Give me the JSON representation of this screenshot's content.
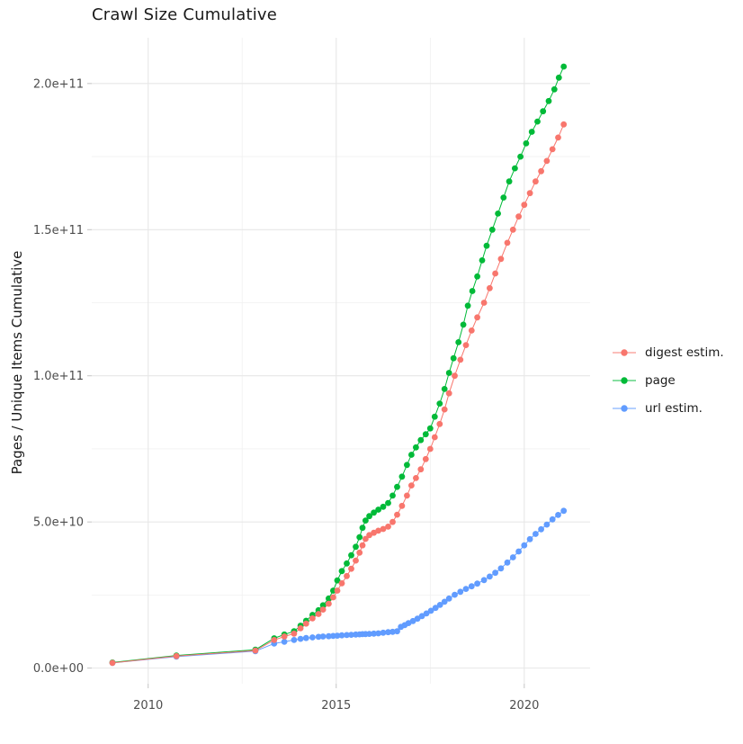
{
  "chart_data": {
    "type": "line",
    "title": "Crawl Size Cumulative",
    "xlabel": "",
    "ylabel": "Pages / Unique Items Cumulative",
    "legend_position": "right",
    "grid": true,
    "value_unit": "1e9",
    "x_axis": {
      "range": [
        2008.5,
        2021.75
      ],
      "ticks": [
        {
          "value": 2010,
          "label": "2010"
        },
        {
          "value": 2015,
          "label": "2015"
        },
        {
          "value": 2020,
          "label": "2020"
        }
      ],
      "minor": [
        2012.5,
        2017.5
      ]
    },
    "y_axis": {
      "range": [
        -5.35,
        215.65
      ],
      "ticks": [
        {
          "value": 0,
          "label": "0.0e+00"
        },
        {
          "value": 50,
          "label": "5.0e+10"
        },
        {
          "value": 100,
          "label": "1.0e+11"
        },
        {
          "value": 150,
          "label": "1.5e+11"
        },
        {
          "value": 200,
          "label": "2.0e+11"
        }
      ],
      "minor": [
        25,
        75,
        125,
        175
      ]
    },
    "series": [
      {
        "name": "digest estim.",
        "color": "#F8766D",
        "points": [
          [
            2009.05,
            1.8
          ],
          [
            2010.75,
            4.1
          ],
          [
            2012.85,
            6.0
          ],
          [
            2013.35,
            9.6
          ],
          [
            2013.62,
            10.8
          ],
          [
            2013.88,
            11.8
          ],
          [
            2014.05,
            13.6
          ],
          [
            2014.2,
            15.2
          ],
          [
            2014.37,
            17.0
          ],
          [
            2014.53,
            18.5
          ],
          [
            2014.65,
            20.0
          ],
          [
            2014.8,
            22.0
          ],
          [
            2014.92,
            24.2
          ],
          [
            2015.03,
            26.5
          ],
          [
            2015.15,
            29.0
          ],
          [
            2015.28,
            31.5
          ],
          [
            2015.4,
            34.0
          ],
          [
            2015.52,
            36.8
          ],
          [
            2015.62,
            39.5
          ],
          [
            2015.7,
            42.0
          ],
          [
            2015.78,
            44.2
          ],
          [
            2015.88,
            45.5
          ],
          [
            2016.0,
            46.3
          ],
          [
            2016.12,
            47.0
          ],
          [
            2016.25,
            47.6
          ],
          [
            2016.38,
            48.4
          ],
          [
            2016.5,
            50.0
          ],
          [
            2016.62,
            52.5
          ],
          [
            2016.75,
            55.5
          ],
          [
            2016.88,
            59.0
          ],
          [
            2017.0,
            62.5
          ],
          [
            2017.12,
            65.0
          ],
          [
            2017.25,
            68.0
          ],
          [
            2017.38,
            71.5
          ],
          [
            2017.5,
            75.0
          ],
          [
            2017.62,
            79.0
          ],
          [
            2017.75,
            83.5
          ],
          [
            2017.88,
            88.5
          ],
          [
            2018.0,
            94.0
          ],
          [
            2018.15,
            100.0
          ],
          [
            2018.3,
            105.5
          ],
          [
            2018.45,
            110.5
          ],
          [
            2018.6,
            115.5
          ],
          [
            2018.75,
            120.0
          ],
          [
            2018.93,
            125.0
          ],
          [
            2019.08,
            130.0
          ],
          [
            2019.23,
            135.0
          ],
          [
            2019.38,
            140.0
          ],
          [
            2019.55,
            145.5
          ],
          [
            2019.7,
            150.0
          ],
          [
            2019.85,
            154.5
          ],
          [
            2020.0,
            158.5
          ],
          [
            2020.15,
            162.5
          ],
          [
            2020.3,
            166.5
          ],
          [
            2020.45,
            170.0
          ],
          [
            2020.6,
            173.5
          ],
          [
            2020.75,
            177.5
          ],
          [
            2020.9,
            181.5
          ],
          [
            2021.05,
            186.0
          ]
        ]
      },
      {
        "name": "page",
        "color": "#00BA38",
        "points": [
          [
            2009.05,
            1.9
          ],
          [
            2010.75,
            4.3
          ],
          [
            2012.85,
            6.3
          ],
          [
            2013.35,
            10.2
          ],
          [
            2013.62,
            11.5
          ],
          [
            2013.88,
            12.6
          ],
          [
            2014.05,
            14.5
          ],
          [
            2014.2,
            16.2
          ],
          [
            2014.37,
            18.2
          ],
          [
            2014.53,
            19.8
          ],
          [
            2014.65,
            21.5
          ],
          [
            2014.8,
            23.8
          ],
          [
            2014.92,
            26.5
          ],
          [
            2015.03,
            30.0
          ],
          [
            2015.15,
            33.2
          ],
          [
            2015.28,
            35.8
          ],
          [
            2015.4,
            38.6
          ],
          [
            2015.52,
            41.5
          ],
          [
            2015.62,
            44.8
          ],
          [
            2015.7,
            48.0
          ],
          [
            2015.78,
            50.5
          ],
          [
            2015.88,
            52.0
          ],
          [
            2016.0,
            53.2
          ],
          [
            2016.12,
            54.2
          ],
          [
            2016.25,
            55.2
          ],
          [
            2016.38,
            56.5
          ],
          [
            2016.5,
            59.0
          ],
          [
            2016.62,
            62.0
          ],
          [
            2016.75,
            65.5
          ],
          [
            2016.88,
            69.5
          ],
          [
            2017.0,
            73.0
          ],
          [
            2017.12,
            75.5
          ],
          [
            2017.25,
            78.0
          ],
          [
            2017.38,
            80.0
          ],
          [
            2017.5,
            82.0
          ],
          [
            2017.62,
            86.0
          ],
          [
            2017.75,
            90.5
          ],
          [
            2017.88,
            95.5
          ],
          [
            2018.0,
            101.0
          ],
          [
            2018.12,
            106.0
          ],
          [
            2018.25,
            111.5
          ],
          [
            2018.38,
            117.5
          ],
          [
            2018.5,
            124.0
          ],
          [
            2018.62,
            129.0
          ],
          [
            2018.75,
            134.0
          ],
          [
            2018.88,
            139.5
          ],
          [
            2019.0,
            144.5
          ],
          [
            2019.15,
            150.0
          ],
          [
            2019.3,
            155.5
          ],
          [
            2019.45,
            161.0
          ],
          [
            2019.6,
            166.5
          ],
          [
            2019.75,
            171.0
          ],
          [
            2019.9,
            175.0
          ],
          [
            2020.05,
            179.5
          ],
          [
            2020.2,
            183.5
          ],
          [
            2020.35,
            187.0
          ],
          [
            2020.5,
            190.5
          ],
          [
            2020.65,
            194.0
          ],
          [
            2020.8,
            198.0
          ],
          [
            2020.92,
            202.0
          ],
          [
            2021.05,
            205.8
          ]
        ]
      },
      {
        "name": "url estim.",
        "color": "#619CFF",
        "points": [
          [
            2009.05,
            1.8
          ],
          [
            2010.75,
            3.9
          ],
          [
            2012.85,
            5.8
          ],
          [
            2013.35,
            8.4
          ],
          [
            2013.62,
            9.0
          ],
          [
            2013.88,
            9.6
          ],
          [
            2014.05,
            10.0
          ],
          [
            2014.2,
            10.3
          ],
          [
            2014.37,
            10.5
          ],
          [
            2014.53,
            10.7
          ],
          [
            2014.65,
            10.8
          ],
          [
            2014.8,
            10.9
          ],
          [
            2014.92,
            11.0
          ],
          [
            2015.03,
            11.1
          ],
          [
            2015.15,
            11.2
          ],
          [
            2015.28,
            11.3
          ],
          [
            2015.4,
            11.4
          ],
          [
            2015.52,
            11.5
          ],
          [
            2015.62,
            11.55
          ],
          [
            2015.7,
            11.6
          ],
          [
            2015.78,
            11.65
          ],
          [
            2015.88,
            11.7
          ],
          [
            2016.0,
            11.8
          ],
          [
            2016.12,
            11.9
          ],
          [
            2016.25,
            12.1
          ],
          [
            2016.38,
            12.3
          ],
          [
            2016.5,
            12.4
          ],
          [
            2016.62,
            12.6
          ],
          [
            2016.72,
            14.1
          ],
          [
            2016.82,
            14.7
          ],
          [
            2016.92,
            15.4
          ],
          [
            2017.04,
            16.1
          ],
          [
            2017.16,
            16.9
          ],
          [
            2017.28,
            17.8
          ],
          [
            2017.4,
            18.7
          ],
          [
            2017.52,
            19.6
          ],
          [
            2017.64,
            20.6
          ],
          [
            2017.76,
            21.6
          ],
          [
            2017.88,
            22.7
          ],
          [
            2018.0,
            23.8
          ],
          [
            2018.15,
            25.1
          ],
          [
            2018.3,
            26.1
          ],
          [
            2018.45,
            27.1
          ],
          [
            2018.6,
            28.0
          ],
          [
            2018.75,
            28.9
          ],
          [
            2018.93,
            30.1
          ],
          [
            2019.08,
            31.3
          ],
          [
            2019.23,
            32.6
          ],
          [
            2019.38,
            34.1
          ],
          [
            2019.55,
            36.1
          ],
          [
            2019.7,
            37.9
          ],
          [
            2019.85,
            39.9
          ],
          [
            2020.0,
            42.0
          ],
          [
            2020.15,
            44.1
          ],
          [
            2020.3,
            45.9
          ],
          [
            2020.45,
            47.5
          ],
          [
            2020.6,
            49.1
          ],
          [
            2020.75,
            50.9
          ],
          [
            2020.9,
            52.4
          ],
          [
            2021.05,
            53.8
          ]
        ]
      }
    ],
    "draw_order": [
      2,
      1,
      0
    ]
  }
}
